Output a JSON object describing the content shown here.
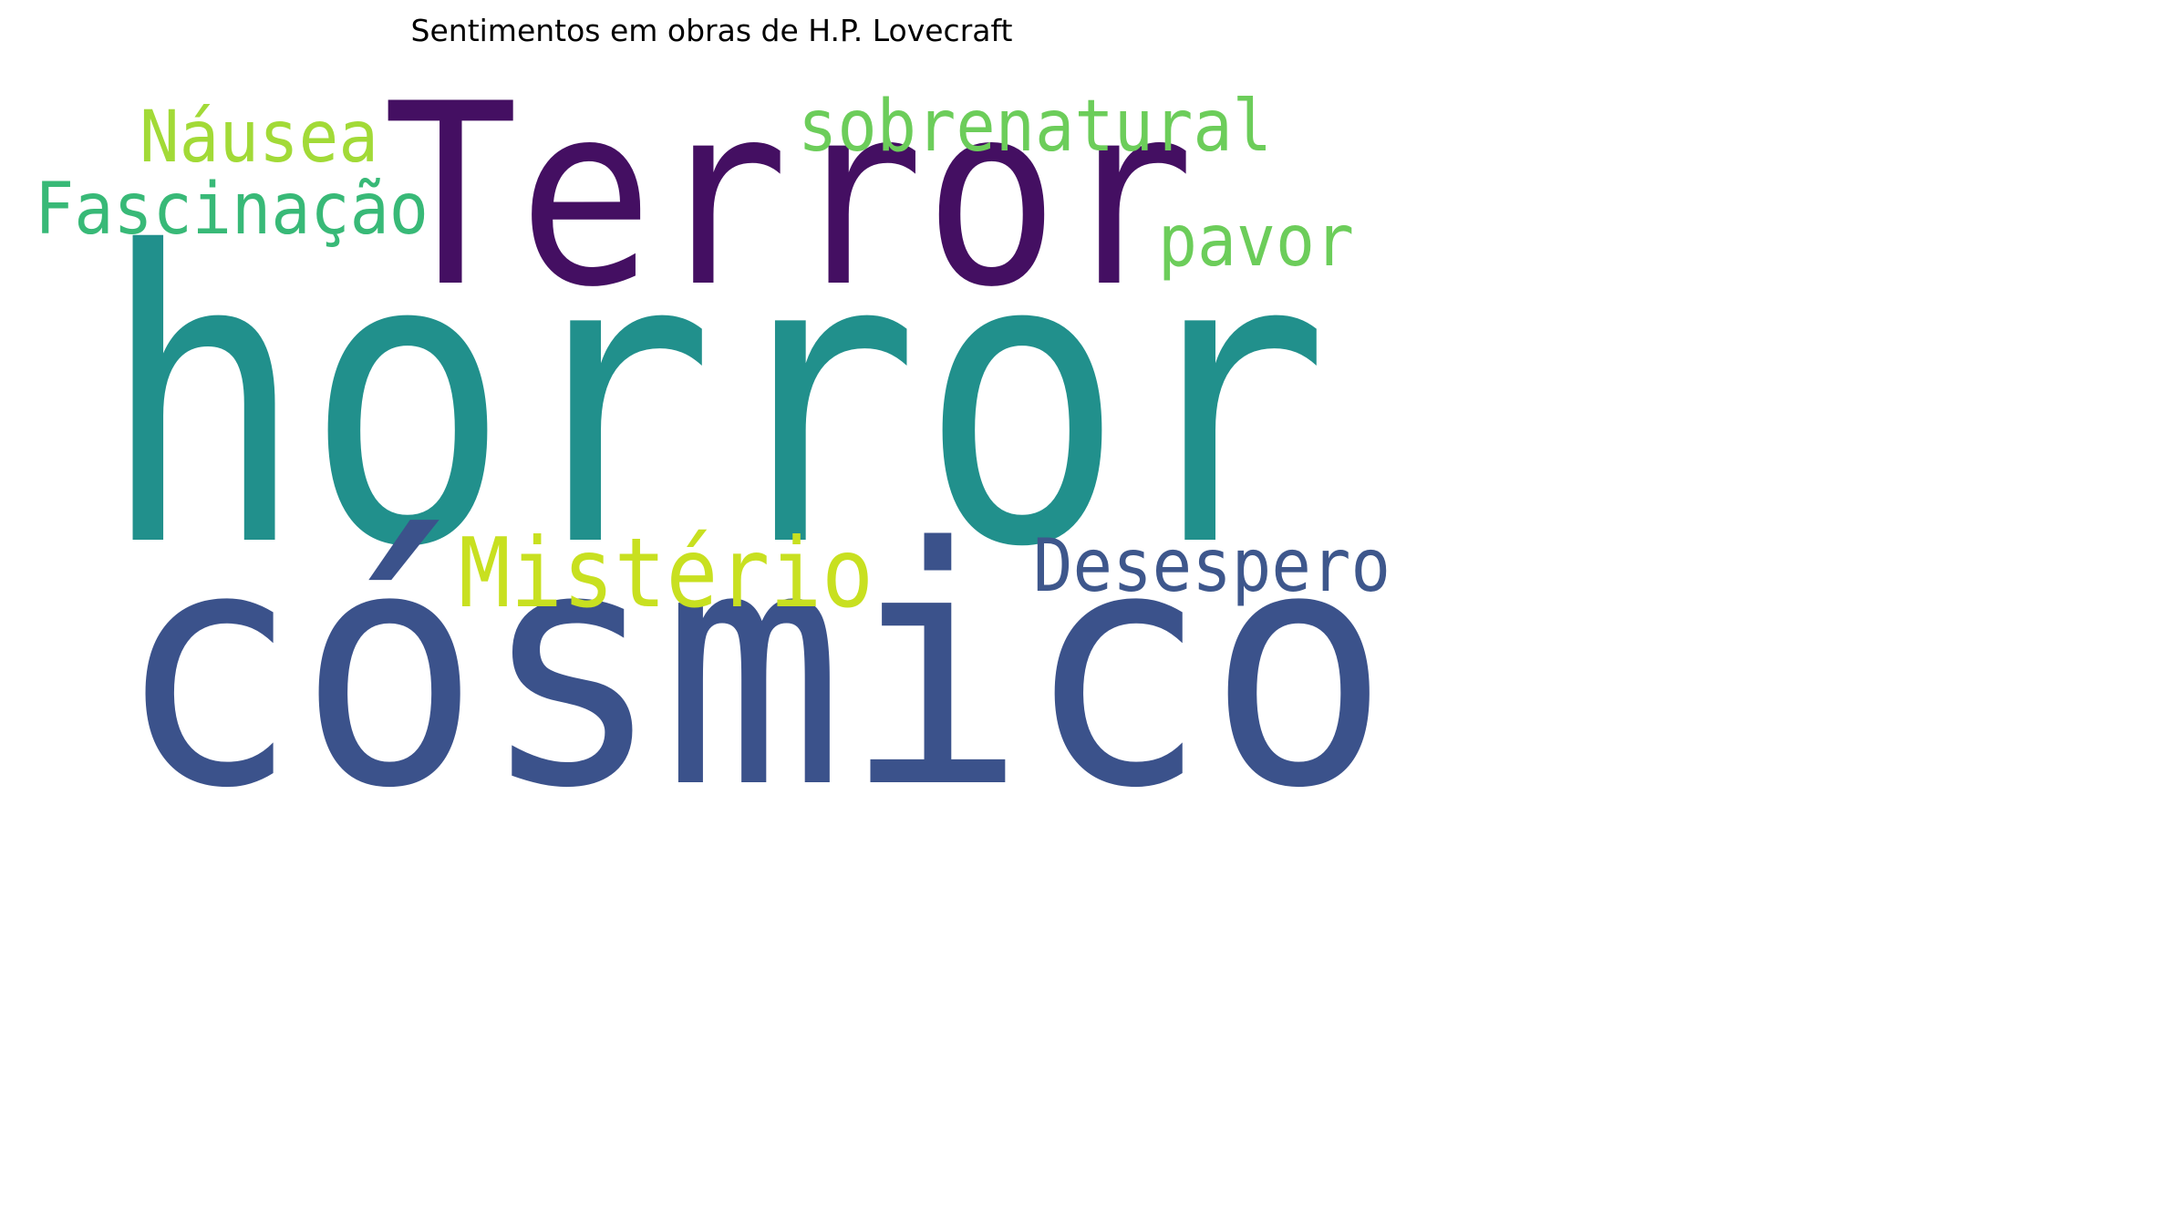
{
  "chart_data": {
    "type": "wordcloud",
    "title": "Sentimentos em obras de H.P. Lovecraft",
    "words": [
      {
        "text": "horror",
        "color": "#21908c"
      },
      {
        "text": "cósmico",
        "color": "#3b528b"
      },
      {
        "text": "Terror",
        "color": "#440f62"
      },
      {
        "text": "Mistério",
        "color": "#c8e020"
      },
      {
        "text": "Desespero",
        "color": "#3e578c"
      },
      {
        "text": "sobrenatural",
        "color": "#6ccd5a"
      },
      {
        "text": "Náusea",
        "color": "#a2da37"
      },
      {
        "text": "Fascinação",
        "color": "#38b977"
      },
      {
        "text": "pavor",
        "color": "#6ccd5a"
      }
    ]
  }
}
